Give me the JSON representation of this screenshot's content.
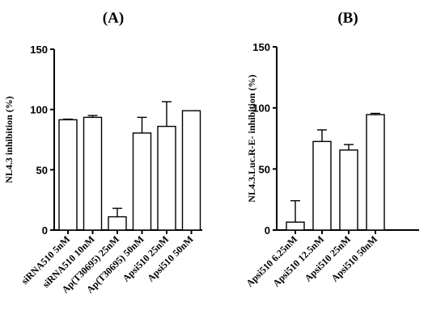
{
  "chart_data": [
    {
      "panel_label": "(A)",
      "type": "bar",
      "ylabel": "NL4.3 inhibition (%)",
      "ylim": [
        0,
        150
      ],
      "yticks": [
        0,
        50,
        100,
        150
      ],
      "categories": [
        "siRNA510 5nM",
        "siRNA510 10nM",
        "Ap(T30695) 25nM",
        "Ap(T30695) 50nM",
        "Apsi510 25nM",
        "Apsi510 50nM"
      ],
      "values": [
        91.5,
        93.5,
        11,
        80.5,
        86,
        99
      ],
      "errors": [
        0.5,
        1.5,
        7,
        13,
        20.5,
        0
      ],
      "bar_fill": "#ffffff",
      "bar_stroke": "#000000"
    },
    {
      "panel_label": "(B)",
      "type": "bar",
      "ylabel": "NL4.3.Luc.R-E- inhibition (%)",
      "ylim": [
        0,
        150
      ],
      "yticks": [
        0,
        50,
        100,
        150
      ],
      "categories": [
        "Apsi510 6.25nM",
        "Apsi510 12.5nM",
        "Apsi510 25nM",
        "Apsi510 50nM"
      ],
      "values": [
        6.5,
        72.5,
        65.5,
        94.5
      ],
      "errors": [
        17.5,
        9.5,
        4.5,
        1
      ],
      "bar_fill": "#ffffff",
      "bar_stroke": "#000000"
    }
  ]
}
